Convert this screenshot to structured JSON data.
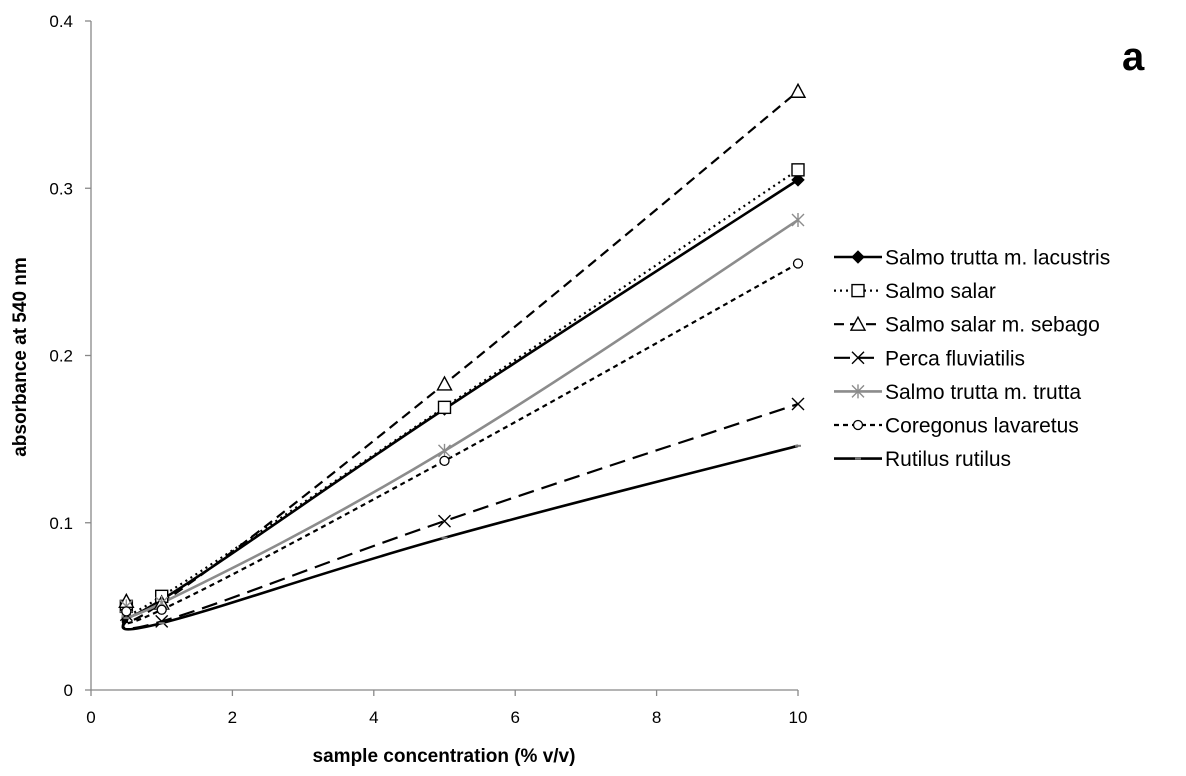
{
  "chart_data": {
    "type": "line",
    "panel_label": "a",
    "xlabel": "sample concentration (% v/v)",
    "ylabel": "absorbance at 540 nm",
    "xlim": [
      0,
      10
    ],
    "ylim": [
      0,
      0.4
    ],
    "xticks": [
      0,
      2,
      4,
      6,
      8,
      10
    ],
    "xtick_labels": [
      "0",
      "2",
      "4",
      "6",
      "8",
      "10"
    ],
    "yticks": [
      0,
      0.1,
      0.2,
      0.3,
      0.4
    ],
    "ytick_labels": [
      "0",
      "0.1",
      "0.2",
      "0.3",
      "0.4"
    ],
    "grid": false,
    "legend_position": "right",
    "x": [
      0.5,
      1,
      5,
      10
    ],
    "series": [
      {
        "name": "Salmo trutta m. lacustris",
        "values": [
          0.051,
          0.054,
          0.168,
          0.305
        ],
        "color": "#000000",
        "dash": "solid",
        "marker": "diamond-filled"
      },
      {
        "name": "Salmo salar",
        "values": [
          0.05,
          0.056,
          0.169,
          0.311
        ],
        "color": "#000000",
        "dash": "dotted",
        "marker": "square-open"
      },
      {
        "name": "Salmo salar m. sebago",
        "values": [
          0.053,
          0.052,
          0.183,
          0.358
        ],
        "color": "#000000",
        "dash": "dashed",
        "marker": "triangle-open"
      },
      {
        "name": "Perca fluviatilis",
        "values": [
          0.045,
          0.041,
          0.101,
          0.171
        ],
        "color": "#000000",
        "dash": "longdash",
        "marker": "x"
      },
      {
        "name": "Salmo trutta m. trutta",
        "values": [
          0.05,
          0.052,
          0.143,
          0.281
        ],
        "color": "#8c8c8c",
        "dash": "solid",
        "marker": "star"
      },
      {
        "name": "Coregonus lavaretus",
        "values": [
          0.047,
          0.048,
          0.137,
          0.255
        ],
        "color": "#000000",
        "dash": "shortdash",
        "marker": "circle-open"
      },
      {
        "name": "Rutilus rutilus",
        "values": [
          0.043,
          0.04,
          0.091,
          0.146
        ],
        "color": "#000000",
        "dash": "solid",
        "marker": "dash"
      }
    ]
  }
}
